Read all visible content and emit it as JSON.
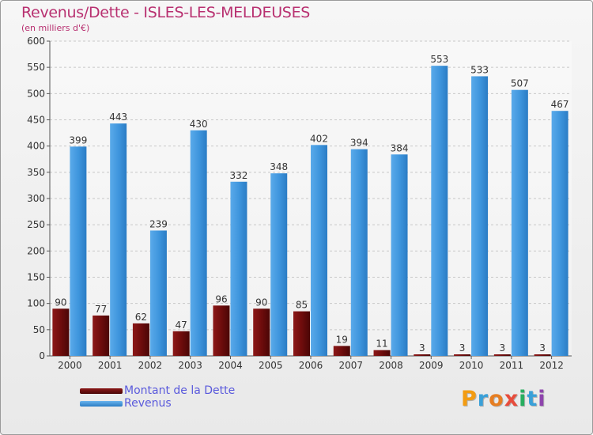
{
  "chart_data": {
    "type": "bar",
    "title": "Revenus/Dette - ISLES-LES-MELDEUSES",
    "subtitle": "(en milliers d'€)",
    "categories": [
      "2000",
      "2001",
      "2002",
      "2003",
      "2004",
      "2005",
      "2006",
      "2007",
      "2008",
      "2009",
      "2010",
      "2011",
      "2012"
    ],
    "series": [
      {
        "name": "Montant de la Dette",
        "color": "#7a0f0f",
        "values": [
          90,
          77,
          62,
          47,
          96,
          90,
          85,
          19,
          11,
          3,
          3,
          3,
          3
        ]
      },
      {
        "name": "Revenus",
        "color": "#3d94dc",
        "values": [
          399,
          443,
          239,
          430,
          332,
          348,
          402,
          394,
          384,
          553,
          533,
          507,
          467
        ]
      }
    ],
    "ylim": [
      0,
      600
    ],
    "yticks": [
      "0",
      "50",
      "100",
      "150",
      "200",
      "250",
      "300",
      "350",
      "400",
      "450",
      "500",
      "550",
      "600"
    ],
    "grid": true,
    "legend": "bottom-left"
  },
  "brand": {
    "logo_text": "Proxiti"
  }
}
